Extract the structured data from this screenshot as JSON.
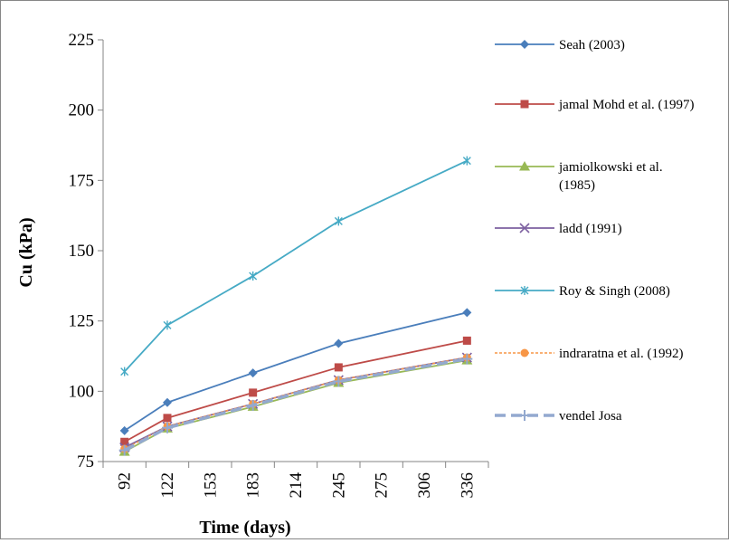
{
  "chart_data": {
    "type": "line",
    "title": "",
    "xlabel": "Time (days)",
    "ylabel": "Cu (kPa)",
    "categories": [
      "92",
      "122",
      "153",
      "183",
      "214",
      "245",
      "275",
      "306",
      "336"
    ],
    "ylim": [
      75,
      225
    ],
    "yticks": [
      75,
      100,
      125,
      150,
      175,
      200,
      225
    ],
    "grid": false,
    "legend_position": "right",
    "series": [
      {
        "name": "Seah (2003)",
        "x": [
          "92",
          "122",
          "183",
          "245",
          "336"
        ],
        "values": [
          86,
          96,
          106.5,
          117,
          128
        ],
        "color": "#4a7ebb",
        "marker": "diamond",
        "dash": "solid"
      },
      {
        "name": "jamal Mohd et al. (1997)",
        "x": [
          "92",
          "122",
          "183",
          "245",
          "336"
        ],
        "values": [
          82,
          90.5,
          99.5,
          108.5,
          118
        ],
        "color": "#be4b48",
        "marker": "square",
        "dash": "solid"
      },
      {
        "name": "jamiolkowski et al. (1985)",
        "x": [
          "92",
          "122",
          "183",
          "245",
          "336"
        ],
        "values": [
          78.5,
          86.8,
          94.5,
          103,
          111
        ],
        "color": "#98b954",
        "marker": "triangle",
        "dash": "solid"
      },
      {
        "name": "ladd (1991)",
        "x": [
          "92",
          "122",
          "183",
          "245",
          "336"
        ],
        "values": [
          80,
          87.5,
          95.5,
          104,
          112
        ],
        "color": "#7d60a0",
        "marker": "x",
        "dash": "solid"
      },
      {
        "name": "Roy & Singh (2008)",
        "x": [
          "92",
          "122",
          "183",
          "245",
          "336"
        ],
        "values": [
          107,
          123.5,
          141,
          160.5,
          182
        ],
        "color": "#46aac5",
        "marker": "star",
        "dash": "solid"
      },
      {
        "name": "indraratna et al. (1992)",
        "x": [
          "92",
          "122",
          "183",
          "245",
          "336"
        ],
        "values": [
          79.5,
          87.5,
          95.5,
          104,
          112
        ],
        "color": "#f79646",
        "marker": "circle",
        "dash": "dotted"
      },
      {
        "name": "vendel Josa",
        "x": [
          "92",
          "122",
          "183",
          "245",
          "336"
        ],
        "values": [
          79,
          87,
          95,
          103.5,
          111.5
        ],
        "color": "#93a9cf",
        "marker": "plus",
        "dash": "dashed"
      }
    ]
  }
}
